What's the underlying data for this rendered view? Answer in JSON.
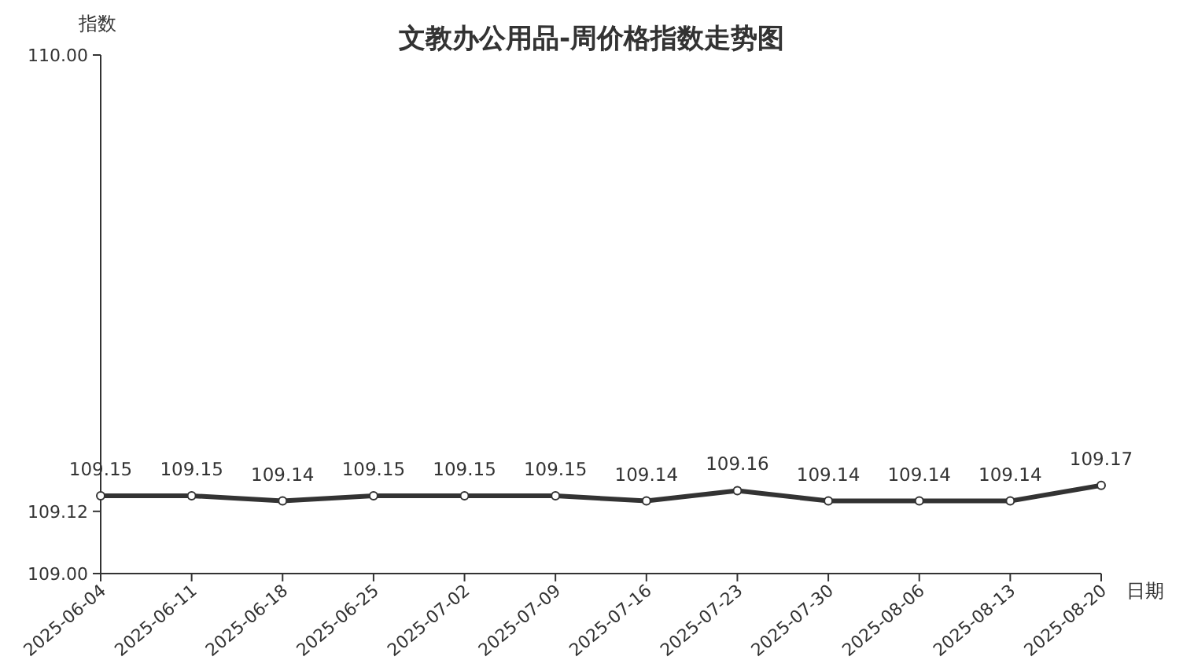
{
  "chart_data": {
    "type": "line",
    "title": "文教办公用品-周价格指数走势图",
    "xlabel": "日期",
    "ylabel": "指数",
    "categories": [
      "2025-06-04",
      "2025-06-11",
      "2025-06-18",
      "2025-06-25",
      "2025-07-02",
      "2025-07-09",
      "2025-07-16",
      "2025-07-23",
      "2025-07-30",
      "2025-08-06",
      "2025-08-13",
      "2025-08-20"
    ],
    "series": [
      {
        "color": "#333333",
        "values": [
          109.15,
          109.15,
          109.14,
          109.15,
          109.15,
          109.15,
          109.14,
          109.16,
          109.14,
          109.14,
          109.14,
          109.17
        ]
      }
    ],
    "ylim": [
      109,
      110
    ],
    "yticks": [
      {
        "value": 109,
        "label": "109.00"
      },
      {
        "value": 109.12,
        "label": "109.12"
      },
      {
        "value": 110,
        "label": "110.00"
      }
    ],
    "data_labels": true,
    "marker": "circle",
    "line_style": "solid",
    "grid": false
  }
}
